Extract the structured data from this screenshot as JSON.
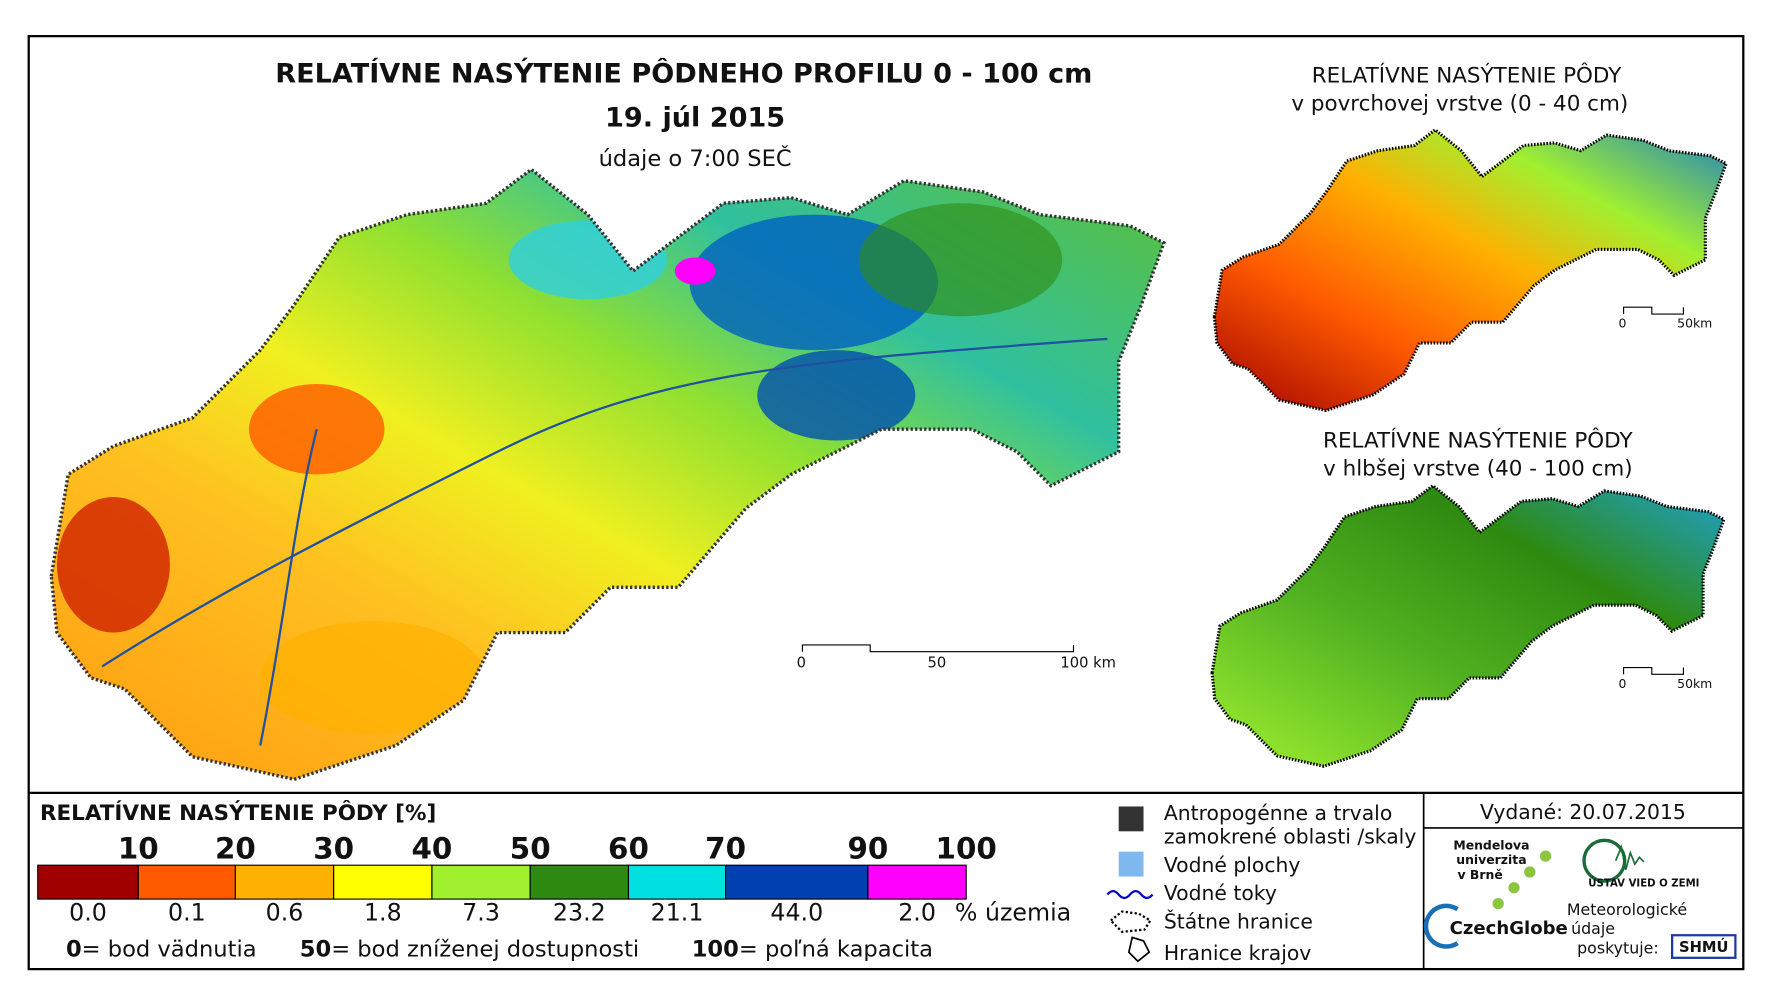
{
  "title": {
    "main": "RELATÍVNE NASÝTENIE PÔDNEHO PROFILU 0 - 100 cm",
    "date": "19. júl 2015",
    "time": "údaje o 7:00 SEČ"
  },
  "main_map": {
    "scale": [
      "0",
      "50",
      "100 km"
    ]
  },
  "inset_top": {
    "title": [
      "RELATÍVNE NASÝTENIE PÔDY",
      "v povrchovej vrstve (0 - 40 cm)"
    ],
    "scale": [
      "0",
      "50km"
    ]
  },
  "inset_bottom": {
    "title": [
      "RELATÍVNE NASÝTENIE PÔDY",
      "v hlbšej vrstve (40 - 100 cm)"
    ],
    "scale": [
      "0",
      "50km"
    ]
  },
  "legend": {
    "title": "RELATÍVNE NASÝTENIE PÔDY [%]",
    "bounds": [
      "10",
      "20",
      "30",
      "40",
      "50",
      "60",
      "70",
      "90",
      "100"
    ],
    "classes": [
      {
        "color": "#a00000",
        "share": "0.0"
      },
      {
        "color": "#ff5a00",
        "share": "0.1"
      },
      {
        "color": "#ffb000",
        "share": "0.6"
      },
      {
        "color": "#ffff00",
        "share": "1.8"
      },
      {
        "color": "#a0f030",
        "share": "7.3"
      },
      {
        "color": "#2e8a10",
        "share": "23.2"
      },
      {
        "color": "#00e0e0",
        "share": "21.1"
      },
      {
        "color": "#0040b0",
        "share": "44.0"
      },
      {
        "color": "#ff00ff",
        "share": "2.0"
      }
    ],
    "share_unit": "% územia",
    "notes": [
      {
        "value": "0",
        "text": "= bod vädnutia"
      },
      {
        "value": "50",
        "text": "= bod zníženej dostupnosti"
      },
      {
        "value": "100",
        "text": "= poľná kapacita"
      }
    ]
  },
  "symbols": [
    "Antropogénne a trvalo",
    "zamokrené oblasti /skaly",
    "Vodné plochy",
    "Vodné toky",
    "Štátne hranice",
    "Hranice krajov"
  ],
  "issued": "Vydané: 20.07.2015",
  "logos": {
    "mendel": [
      "Mendelova",
      "univerzita",
      "v Brně"
    ],
    "czechglobe": "CzechGlobe",
    "uvz": "ÚSTAV VIED O ZEMI",
    "shmu_note": [
      "Meteorologické",
      "údaje",
      "poskytuje:"
    ],
    "shmu": "SHMÚ"
  }
}
